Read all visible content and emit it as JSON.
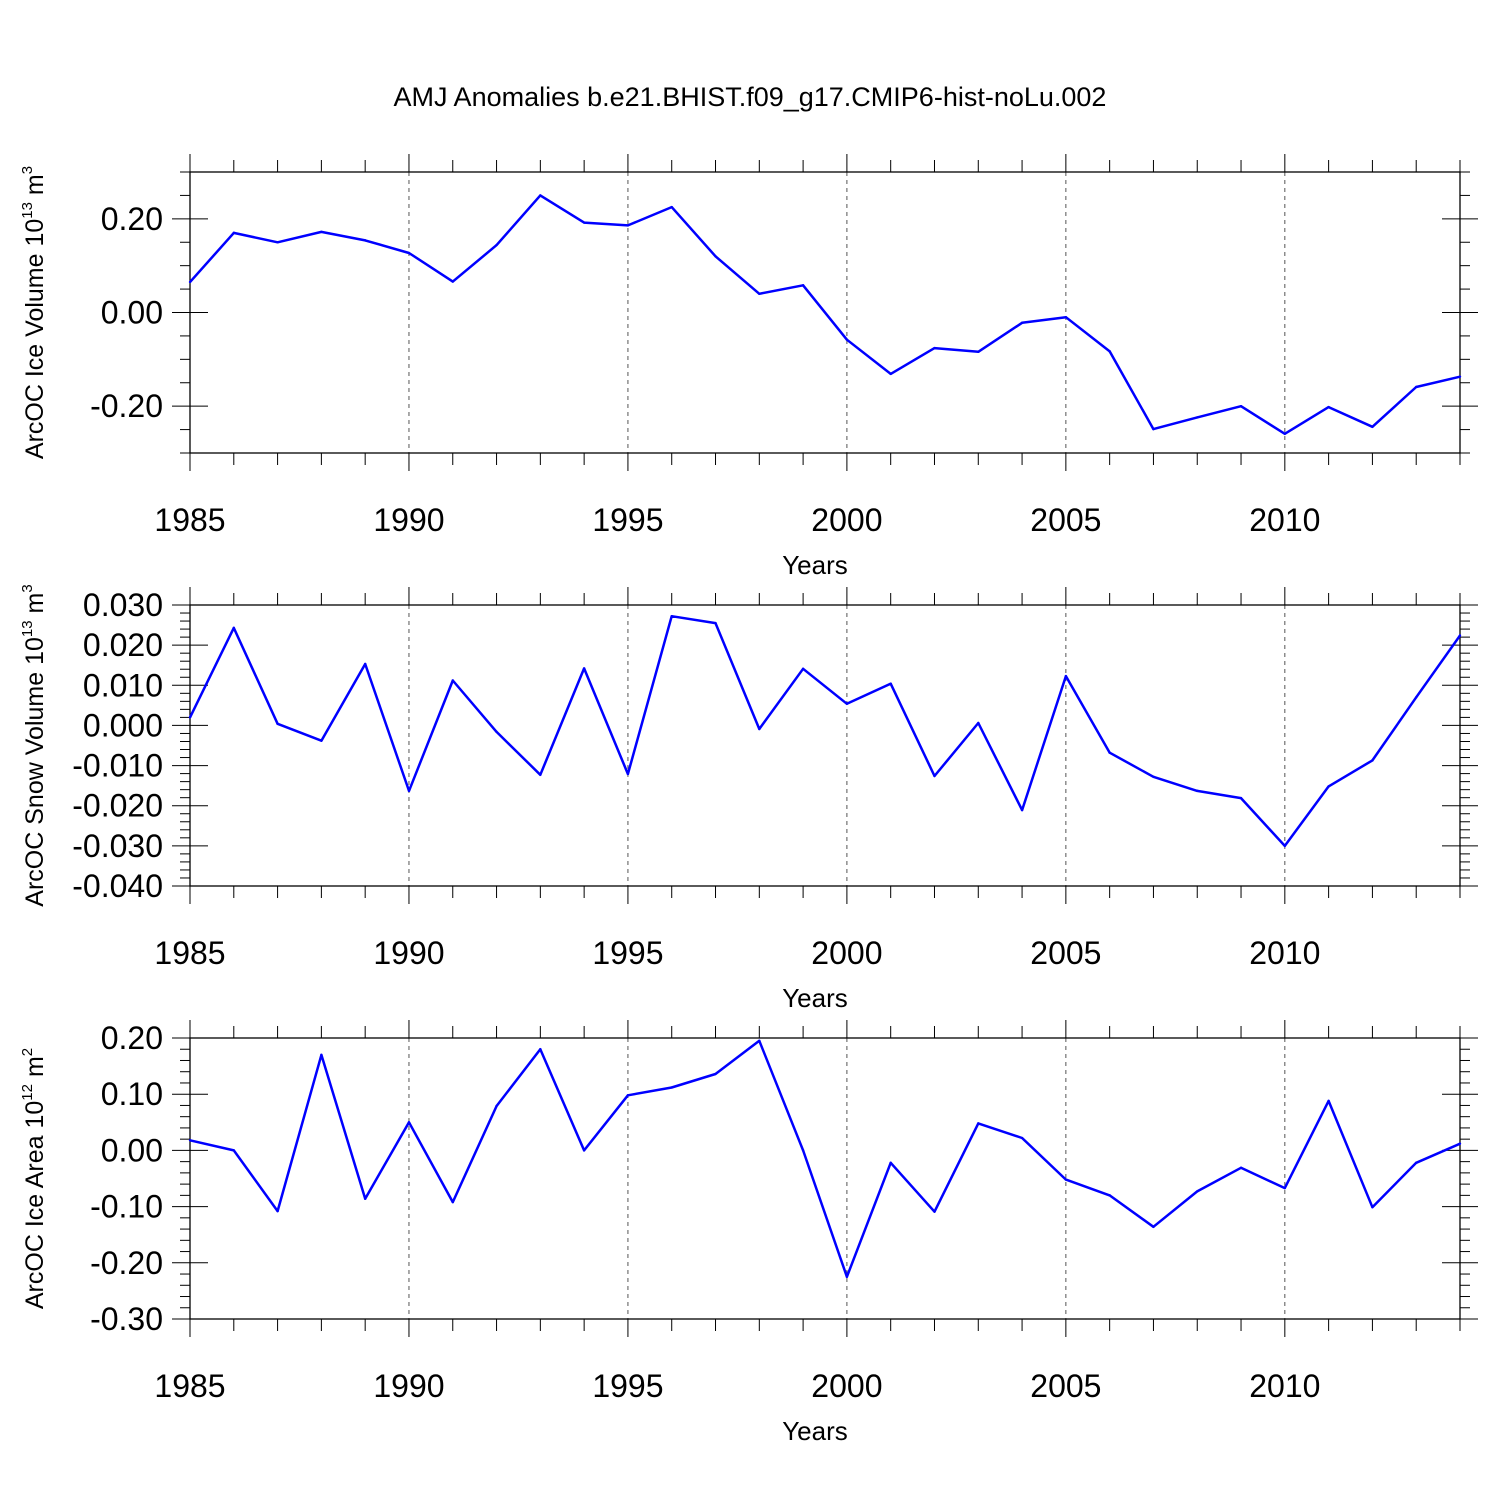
{
  "chart_data": [
    {
      "type": "line",
      "title": "AMJ Anomalies b.e21.BHIST.f09_g17.CMIP6-hist-noLu.002",
      "xlabel": "Years",
      "ylabel": "ArcOC Ice Volume 10",
      "ylabel_exp": "13",
      "ylabel_unit": " m",
      "ylabel_unit_exp": "3",
      "xlim": [
        1985,
        2014
      ],
      "ylim": [
        -0.3,
        0.3
      ],
      "yticks": [
        -0.2,
        0.0,
        0.2
      ],
      "ytick_labels": [
        "-0.20",
        "0.00",
        "0.20"
      ],
      "yminor_step": 0.05,
      "xticks": [
        1985,
        1990,
        1995,
        2000,
        2005,
        2010
      ],
      "xtick_labels": [
        "1985",
        "1990",
        "1995",
        "2000",
        "2005",
        "2010"
      ],
      "grid_x": [
        1990,
        1995,
        2000,
        2005,
        2010
      ],
      "line_color": "#0000ff",
      "x": [
        1985,
        1986,
        1987,
        1988,
        1989,
        1990,
        1991,
        1992,
        1993,
        1994,
        1995,
        1996,
        1997,
        1998,
        1999,
        2000,
        2001,
        2002,
        2003,
        2004,
        2005,
        2006,
        2007,
        2008,
        2009,
        2010,
        2011,
        2012,
        2013,
        2014
      ],
      "values": [
        0.065,
        0.17,
        0.15,
        0.172,
        0.154,
        0.127,
        0.066,
        0.144,
        0.25,
        0.192,
        0.186,
        0.225,
        0.12,
        0.04,
        0.058,
        -0.058,
        -0.131,
        -0.076,
        -0.084,
        -0.022,
        -0.01,
        -0.083,
        -0.249,
        -0.224,
        -0.2,
        -0.259,
        -0.202,
        -0.244,
        -0.159,
        -0.137
      ]
    },
    {
      "type": "line",
      "title": "",
      "xlabel": "Years",
      "ylabel": "ArcOC Snow Volume 10",
      "ylabel_exp": "13",
      "ylabel_unit": " m",
      "ylabel_unit_exp": "3",
      "xlim": [
        1985,
        2014
      ],
      "ylim": [
        -0.04,
        0.03
      ],
      "yticks": [
        -0.04,
        -0.03,
        -0.02,
        -0.01,
        0.0,
        0.01,
        0.02,
        0.03
      ],
      "ytick_labels": [
        "-0.040",
        "-0.030",
        "-0.020",
        "-0.010",
        "0.000",
        "0.010",
        "0.020",
        "0.030"
      ],
      "yminor_step": 0.002,
      "xticks": [
        1985,
        1990,
        1995,
        2000,
        2005,
        2010
      ],
      "xtick_labels": [
        "1985",
        "1990",
        "1995",
        "2000",
        "2005",
        "2010"
      ],
      "grid_x": [
        1990,
        1995,
        2000,
        2005,
        2010
      ],
      "line_color": "#0000ff",
      "x": [
        1985,
        1986,
        1987,
        1988,
        1989,
        1990,
        1991,
        1992,
        1993,
        1994,
        1995,
        1996,
        1997,
        1998,
        1999,
        2000,
        2001,
        2002,
        2003,
        2004,
        2005,
        2006,
        2007,
        2008,
        2009,
        2010,
        2011,
        2012,
        2013,
        2014
      ],
      "values": [
        0.002,
        0.0243,
        0.0004,
        -0.0038,
        0.0153,
        -0.0163,
        0.0112,
        -0.0016,
        -0.0123,
        0.0142,
        -0.0121,
        0.0272,
        0.0255,
        -0.0009,
        0.0141,
        0.0054,
        0.0104,
        -0.0126,
        0.0006,
        -0.0211,
        0.0123,
        -0.0068,
        -0.0128,
        -0.0163,
        -0.0181,
        -0.03,
        -0.0152,
        -0.0087,
        0.007,
        0.0224
      ]
    },
    {
      "type": "line",
      "title": "",
      "xlabel": "Years",
      "ylabel": "ArcOC Ice Area 10",
      "ylabel_exp": "12",
      "ylabel_unit": " m",
      "ylabel_unit_exp": "2",
      "xlim": [
        1985,
        2014
      ],
      "ylim": [
        -0.3,
        0.2
      ],
      "yticks": [
        -0.3,
        -0.2,
        -0.1,
        0.0,
        0.1,
        0.2
      ],
      "ytick_labels": [
        "-0.30",
        "-0.20",
        "-0.10",
        "0.00",
        "0.10",
        "0.20"
      ],
      "yminor_step": 0.02,
      "xticks": [
        1985,
        1990,
        1995,
        2000,
        2005,
        2010
      ],
      "xtick_labels": [
        "1985",
        "1990",
        "1995",
        "2000",
        "2005",
        "2010"
      ],
      "grid_x": [
        1990,
        1995,
        2000,
        2005,
        2010
      ],
      "line_color": "#0000ff",
      "x": [
        1985,
        1986,
        1987,
        1988,
        1989,
        1990,
        1991,
        1992,
        1993,
        1994,
        1995,
        1996,
        1997,
        1998,
        1999,
        2000,
        2001,
        2002,
        2003,
        2004,
        2005,
        2006,
        2007,
        2008,
        2009,
        2010,
        2011,
        2012,
        2013,
        2014
      ],
      "values": [
        0.018,
        0.0,
        -0.108,
        0.17,
        -0.086,
        0.05,
        -0.092,
        0.079,
        0.18,
        0.0,
        0.098,
        0.112,
        0.136,
        0.195,
        0.0,
        -0.225,
        -0.022,
        -0.109,
        0.048,
        0.022,
        -0.052,
        -0.08,
        -0.136,
        -0.073,
        -0.031,
        -0.067,
        0.088,
        -0.101,
        -0.022,
        0.012
      ]
    }
  ]
}
